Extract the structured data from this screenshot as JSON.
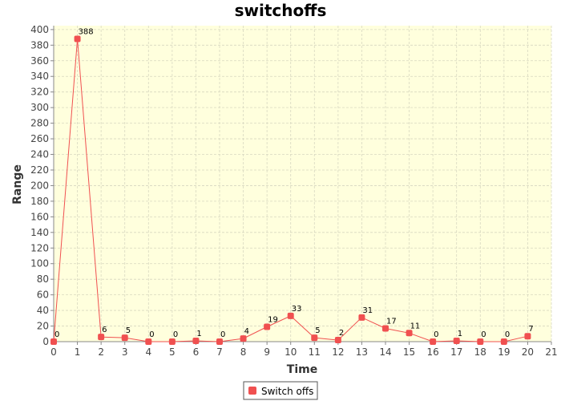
{
  "chart_data": {
    "type": "line",
    "title": "switchoffs",
    "xlabel": "Time",
    "ylabel": "Range",
    "xlim": [
      0,
      21
    ],
    "ylim": [
      0,
      405
    ],
    "x_ticks": [
      0,
      1,
      2,
      3,
      4,
      5,
      6,
      7,
      8,
      9,
      10,
      11,
      12,
      13,
      14,
      15,
      16,
      17,
      18,
      19,
      20,
      21
    ],
    "y_ticks": [
      0,
      20,
      40,
      60,
      80,
      100,
      120,
      140,
      160,
      180,
      200,
      220,
      240,
      260,
      280,
      300,
      320,
      340,
      360,
      380,
      400
    ],
    "grid": true,
    "legend_position": "bottom-center",
    "colors": {
      "series": "#f05050",
      "plot_background": "#ffffdd",
      "grid": "#d8d8c0"
    },
    "series": [
      {
        "name": "Switch offs",
        "x": [
          0,
          1,
          2,
          3,
          4,
          5,
          6,
          7,
          8,
          9,
          10,
          11,
          12,
          13,
          14,
          15,
          16,
          17,
          18,
          19,
          20
        ],
        "values": [
          0,
          388,
          6,
          5,
          0,
          0,
          1,
          0,
          4,
          19,
          33,
          5,
          2,
          31,
          17,
          11,
          0,
          1,
          0,
          0,
          7
        ]
      }
    ]
  }
}
